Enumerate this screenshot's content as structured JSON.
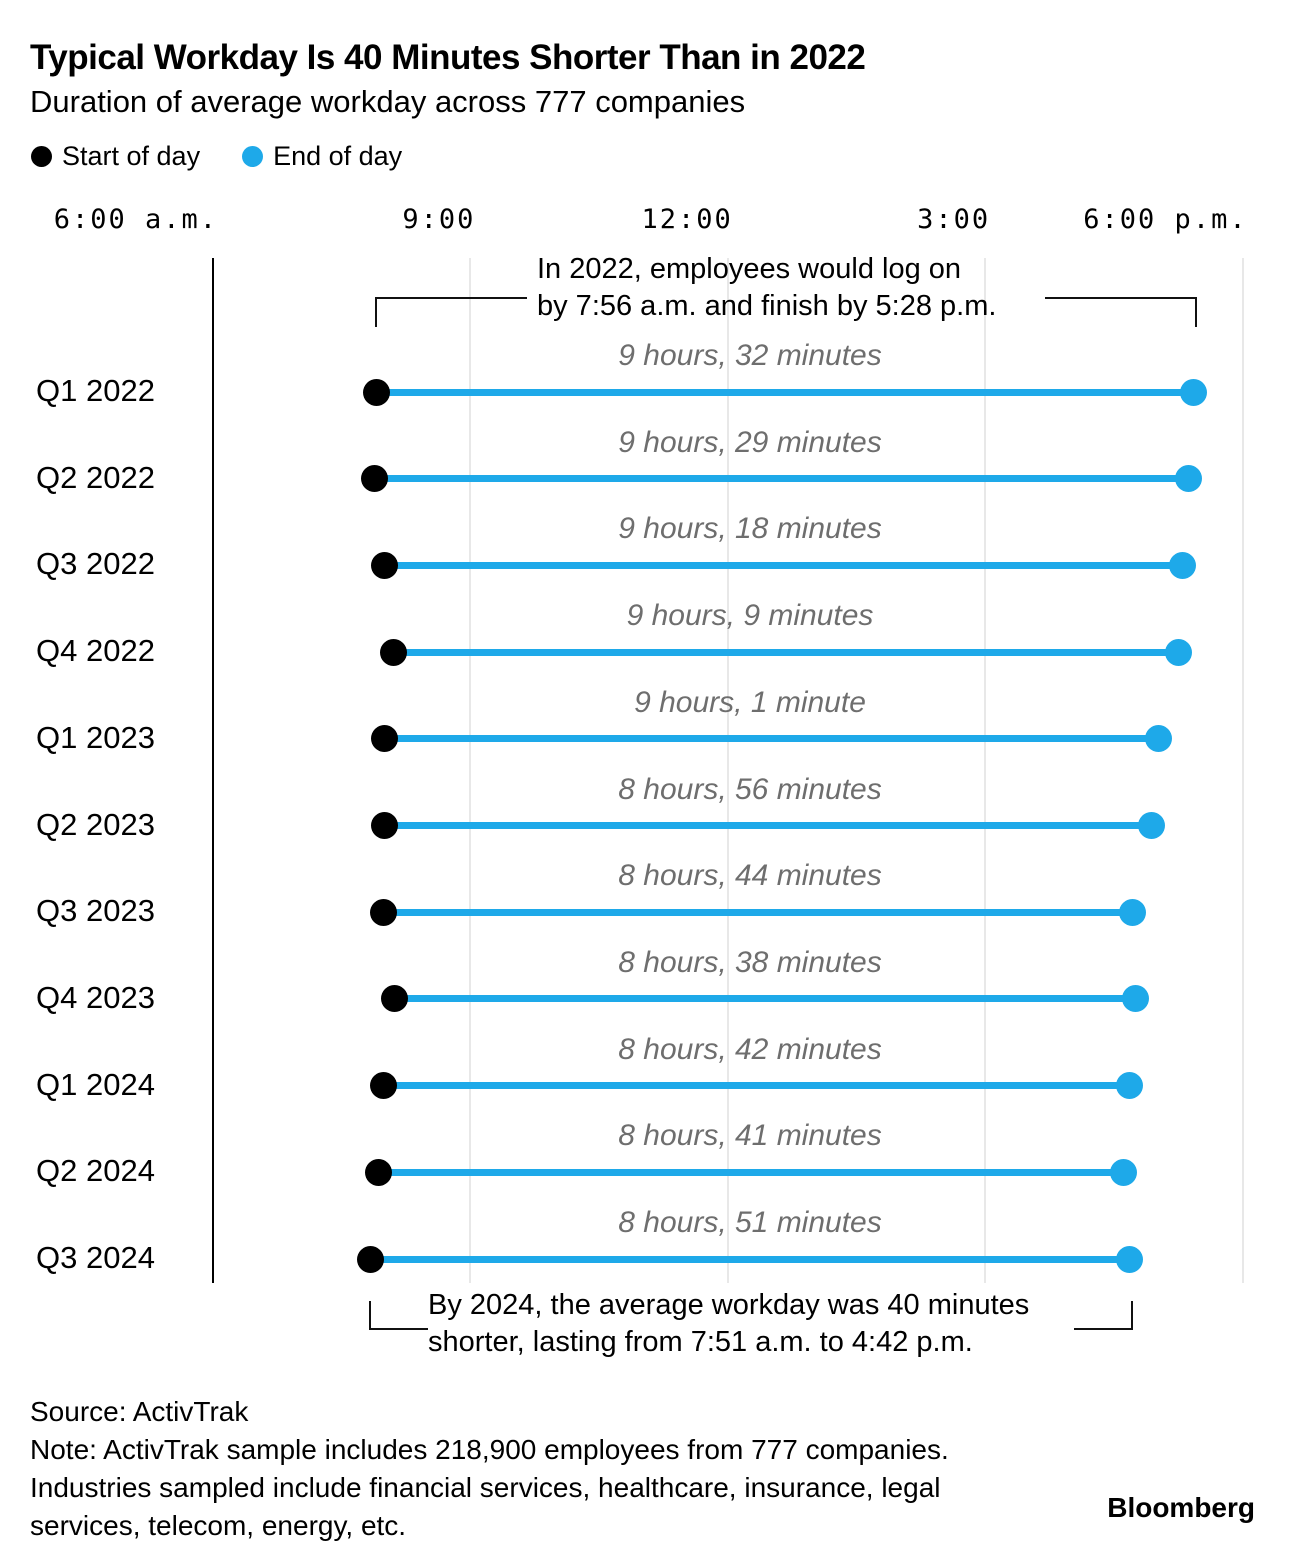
{
  "header": {
    "title": "Typical Workday Is 40 Minutes Shorter Than in 2022",
    "subtitle": "Duration of average workday across 777 companies"
  },
  "legend": {
    "start_label": "Start of day",
    "end_label": "End of day"
  },
  "colors": {
    "blue": "#1ea9e9",
    "black": "#000000",
    "gray_text": "#6e6e6e",
    "gridline": "#e8e8e8"
  },
  "annotations": {
    "top_lines": [
      "In 2022, employees would log on",
      "by 7:56 a.m. and finish by 5:28 p.m."
    ],
    "bottom_lines": [
      "By 2024, the average workday was 40 minutes",
      "shorter, lasting from 7:51 a.m. to 4:42 p.m."
    ]
  },
  "chart_data": {
    "type": "dumbbell-range",
    "title": "Typical Workday Is 40 Minutes Shorter Than in 2022",
    "subtitle": "Duration of average workday across 777 companies",
    "x_axis": {
      "unit": "time of day",
      "range_hours": [
        6,
        18
      ],
      "ticks": [
        {
          "label": "6:00 a.m.",
          "hour": 6
        },
        {
          "label": "9:00",
          "hour": 9
        },
        {
          "label": "12:00",
          "hour": 12
        },
        {
          "label": "3:00",
          "hour": 15
        },
        {
          "label": "6:00 p.m.",
          "hour": 18
        }
      ],
      "grid": true
    },
    "series": [
      {
        "name": "Start of day",
        "color": "#000000"
      },
      {
        "name": "End of day",
        "color": "#1ea9e9"
      }
    ],
    "rows": [
      {
        "label": "Q1 2022",
        "duration_label": "9 hours, 32 minutes",
        "start_hour": 7.9,
        "end_hour": 17.433
      },
      {
        "label": "Q2 2022",
        "duration_label": "9 hours, 29 minutes",
        "start_hour": 7.883,
        "end_hour": 17.367
      },
      {
        "label": "Q3 2022",
        "duration_label": "9 hours, 18 minutes",
        "start_hour": 8.0,
        "end_hour": 17.3
      },
      {
        "label": "Q4 2022",
        "duration_label": "9 hours, 9 minutes",
        "start_hour": 8.1,
        "end_hour": 17.25
      },
      {
        "label": "Q1 2023",
        "duration_label": "9 hours, 1 minute",
        "start_hour": 8.0,
        "end_hour": 17.017
      },
      {
        "label": "Q2 2023",
        "duration_label": "8 hours, 56 minutes",
        "start_hour": 8.0,
        "end_hour": 16.933
      },
      {
        "label": "Q3 2023",
        "duration_label": "8 hours, 44 minutes",
        "start_hour": 7.983,
        "end_hour": 16.717
      },
      {
        "label": "Q4 2023",
        "duration_label": "8 hours, 38 minutes",
        "start_hour": 8.117,
        "end_hour": 16.75
      },
      {
        "label": "Q1 2024",
        "duration_label": "8 hours, 42 minutes",
        "start_hour": 7.983,
        "end_hour": 16.683
      },
      {
        "label": "Q2 2024",
        "duration_label": "8 hours, 41 minutes",
        "start_hour": 7.933,
        "end_hour": 16.617
      },
      {
        "label": "Q3 2024",
        "duration_label": "8 hours, 51 minutes",
        "start_hour": 7.833,
        "end_hour": 16.683
      }
    ]
  },
  "footer": {
    "source": "Source: ActivTrak",
    "note_lines": [
      "Note: ActivTrak sample includes 218,900 employees from 777 companies.",
      "Industries sampled include financial services, healthcare, insurance, legal",
      "services, telecom, energy, etc."
    ],
    "brand": "Bloomberg"
  }
}
